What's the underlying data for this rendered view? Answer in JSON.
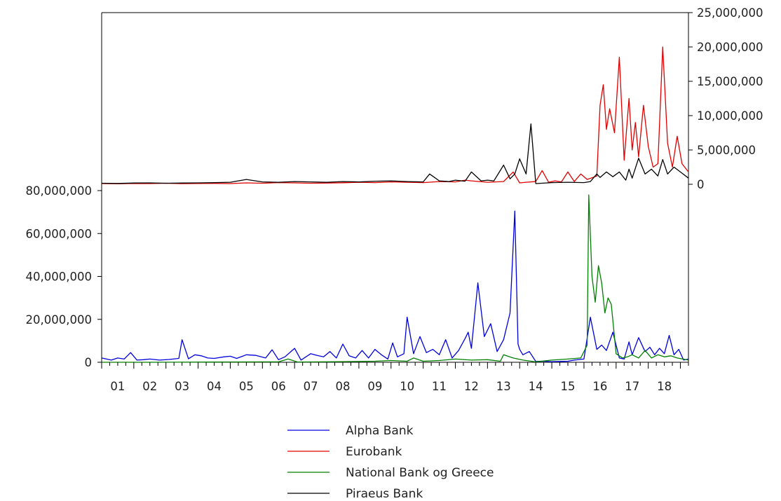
{
  "chart_data": {
    "type": "line",
    "title": "",
    "x_tick_labels": [
      "01",
      "02",
      "03",
      "04",
      "05",
      "06",
      "07",
      "08",
      "09",
      "10",
      "11",
      "12",
      "13",
      "14",
      "15",
      "16",
      "17",
      "18"
    ],
    "x_range": [
      2000.5,
      2018.75
    ],
    "upper_panel": {
      "axis": "right",
      "ylim": [
        0,
        25000000
      ],
      "y_tick_labels": [
        "0",
        "5,000,000",
        "10,000,000",
        "15,000,000",
        "20,000,000",
        "25,000,000"
      ],
      "y_tick_values": [
        0,
        5000000,
        10000000,
        15000000,
        20000000,
        25000000
      ],
      "series": [
        {
          "name": "Eurobank",
          "color": "#e00000",
          "x": [
            2000.5,
            2001.0,
            2001.5,
            2002.0,
            2002.5,
            2003.0,
            2003.5,
            2004.0,
            2004.5,
            2005.0,
            2005.5,
            2006.0,
            2006.5,
            2007.0,
            2007.5,
            2008.0,
            2008.5,
            2009.0,
            2009.5,
            2010.0,
            2010.5,
            2011.0,
            2011.5,
            2011.8,
            2012.0,
            2012.5,
            2013.0,
            2013.3,
            2013.5,
            2013.7,
            2014.0,
            2014.2,
            2014.4,
            2014.6,
            2014.8,
            2015.0,
            2015.2,
            2015.4,
            2015.6,
            2015.9,
            2016.0,
            2016.1,
            2016.2,
            2016.3,
            2016.45,
            2016.6,
            2016.75,
            2016.9,
            2017.0,
            2017.1,
            2017.2,
            2017.35,
            2017.5,
            2017.65,
            2017.8,
            2017.95,
            2018.1,
            2018.25,
            2018.4,
            2018.55,
            2018.75
          ],
          "y": [
            100000,
            80000,
            120000,
            100000,
            150000,
            90000,
            110000,
            130000,
            100000,
            200000,
            150000,
            250000,
            200000,
            150000,
            180000,
            220000,
            300000,
            250000,
            350000,
            300000,
            250000,
            400000,
            350000,
            600000,
            500000,
            300000,
            400000,
            1800000,
            200000,
            300000,
            400000,
            2000000,
            300000,
            500000,
            350000,
            1800000,
            400000,
            1500000,
            700000,
            1200000,
            11500000,
            14500000,
            8000000,
            11000000,
            7500000,
            18500000,
            3500000,
            12500000,
            5000000,
            9000000,
            4000000,
            11500000,
            5500000,
            2500000,
            3000000,
            20000000,
            6000000,
            2500000,
            7000000,
            3000000,
            1800000
          ]
        },
        {
          "name": "Piraeus Bank",
          "color": "#000000",
          "x": [
            2000.5,
            2001.0,
            2001.5,
            2002.0,
            2002.5,
            2003.0,
            2003.5,
            2004.0,
            2004.5,
            2005.0,
            2005.5,
            2006.0,
            2006.5,
            2007.0,
            2007.5,
            2008.0,
            2008.5,
            2009.0,
            2009.5,
            2010.0,
            2010.5,
            2010.7,
            2011.0,
            2011.3,
            2011.5,
            2011.8,
            2012.0,
            2012.3,
            2012.5,
            2012.7,
            2013.0,
            2013.2,
            2013.35,
            2013.5,
            2013.7,
            2013.85,
            2014.0,
            2014.5,
            2015.0,
            2015.5,
            2015.7,
            2015.9,
            2016.0,
            2016.2,
            2016.4,
            2016.6,
            2016.8,
            2016.9,
            2017.0,
            2017.2,
            2017.4,
            2017.6,
            2017.8,
            2017.95,
            2018.1,
            2018.3,
            2018.5,
            2018.75
          ],
          "y": [
            150000,
            120000,
            180000,
            200000,
            150000,
            180000,
            200000,
            250000,
            300000,
            700000,
            350000,
            300000,
            400000,
            350000,
            300000,
            400000,
            350000,
            450000,
            500000,
            400000,
            350000,
            1500000,
            500000,
            400000,
            600000,
            450000,
            1800000,
            500000,
            600000,
            500000,
            2800000,
            800000,
            1500000,
            3700000,
            1500000,
            8800000,
            100000,
            250000,
            300000,
            250000,
            400000,
            1500000,
            1000000,
            1800000,
            1100000,
            1800000,
            600000,
            2200000,
            900000,
            3800000,
            1500000,
            2200000,
            1200000,
            3600000,
            1500000,
            2500000,
            1800000,
            900000
          ]
        }
      ]
    },
    "lower_panel": {
      "axis": "left",
      "ylim": [
        0,
        80000000
      ],
      "y_tick_labels": [
        "0",
        "20,000,000",
        "40,000,000",
        "60,000,000",
        "80,000,000"
      ],
      "y_tick_values": [
        0,
        20000000,
        40000000,
        60000000,
        80000000
      ],
      "series": [
        {
          "name": "Alpha Bank",
          "color": "#0000dd",
          "x": [
            2000.5,
            2000.8,
            2001.0,
            2001.2,
            2001.4,
            2001.6,
            2001.8,
            2002.0,
            2002.3,
            2002.6,
            2002.9,
            2003.0,
            2003.2,
            2003.4,
            2003.6,
            2003.8,
            2004.0,
            2004.3,
            2004.5,
            2004.7,
            2005.0,
            2005.3,
            2005.6,
            2005.8,
            2006.0,
            2006.2,
            2006.5,
            2006.7,
            2007.0,
            2007.2,
            2007.4,
            2007.6,
            2007.8,
            2008.0,
            2008.2,
            2008.4,
            2008.6,
            2008.8,
            2009.0,
            2009.2,
            2009.4,
            2009.55,
            2009.7,
            2009.9,
            2010.0,
            2010.2,
            2010.4,
            2010.6,
            2010.8,
            2011.0,
            2011.2,
            2011.4,
            2011.6,
            2011.8,
            2011.9,
            2012.0,
            2012.2,
            2012.4,
            2012.6,
            2012.8,
            2013.0,
            2013.2,
            2013.35,
            2013.45,
            2013.5,
            2013.6,
            2013.8,
            2014.0,
            2014.2,
            2014.5,
            2014.8,
            2015.0,
            2015.2,
            2015.5,
            2015.7,
            2015.9,
            2016.05,
            2016.2,
            2016.4,
            2016.6,
            2016.75,
            2016.9,
            2017.0,
            2017.2,
            2017.4,
            2017.55,
            2017.7,
            2017.85,
            2018.0,
            2018.15,
            2018.3,
            2018.45,
            2018.6,
            2018.75
          ],
          "y": [
            2000000,
            1000000,
            2000000,
            1500000,
            4500000,
            1000000,
            1200000,
            1500000,
            1000000,
            1300000,
            1800000,
            10500000,
            1600000,
            3500000,
            3000000,
            2000000,
            1800000,
            2500000,
            2800000,
            1800000,
            3500000,
            3200000,
            2000000,
            5800000,
            1200000,
            2500000,
            6500000,
            1000000,
            4000000,
            3200000,
            2500000,
            5000000,
            2000000,
            8500000,
            3000000,
            2000000,
            5500000,
            2000000,
            6000000,
            3500000,
            1500000,
            9000000,
            2500000,
            4000000,
            21000000,
            4000000,
            12000000,
            4500000,
            6000000,
            3500000,
            10500000,
            2000000,
            5500000,
            11000000,
            14000000,
            6500000,
            37000000,
            12000000,
            18000000,
            5000000,
            10500000,
            23000000,
            70500000,
            8500000,
            6000000,
            3500000,
            5000000,
            400000,
            500000,
            300000,
            400000,
            500000,
            1000000,
            1500000,
            21000000,
            6000000,
            8000000,
            5500000,
            14000000,
            2000000,
            1500000,
            9500000,
            3500000,
            11500000,
            5000000,
            7000000,
            3500000,
            6500000,
            4000000,
            12500000,
            3500000,
            6000000,
            1000000,
            1500000
          ]
        },
        {
          "name": "National Bank og Greece",
          "color": "#008000",
          "x": [
            2000.5,
            2002.0,
            2004.0,
            2006.0,
            2006.3,
            2006.6,
            2008.0,
            2009.0,
            2009.5,
            2010.0,
            2010.2,
            2010.5,
            2011.0,
            2011.5,
            2012.0,
            2012.5,
            2012.9,
            2013.0,
            2013.3,
            2013.6,
            2014.0,
            2014.5,
            2015.0,
            2015.4,
            2015.6,
            2015.65,
            2015.75,
            2015.85,
            2015.95,
            2016.05,
            2016.15,
            2016.25,
            2016.35,
            2016.5,
            2016.7,
            2016.85,
            2017.0,
            2017.2,
            2017.4,
            2017.6,
            2017.8,
            2018.0,
            2018.2,
            2018.4,
            2018.75
          ],
          "y": [
            0,
            0,
            100000,
            200000,
            1500000,
            100000,
            300000,
            500000,
            800000,
            500000,
            2000000,
            500000,
            800000,
            1500000,
            1000000,
            1200000,
            500000,
            3500000,
            2000000,
            1000000,
            200000,
            1000000,
            1500000,
            2000000,
            8000000,
            78000000,
            40000000,
            28000000,
            45000000,
            37000000,
            23000000,
            30000000,
            27000000,
            4000000,
            2000000,
            2500000,
            3500000,
            2000000,
            5500000,
            2000000,
            3500000,
            2500000,
            3000000,
            2000000,
            1000000
          ]
        }
      ]
    },
    "legend": {
      "placement": "bottom",
      "entries": [
        {
          "label": "Alpha Bank",
          "color": "#0000dd"
        },
        {
          "label": "Eurobank",
          "color": "#e00000"
        },
        {
          "label": "National Bank og Greece",
          "color": "#008000"
        },
        {
          "label": "Piraeus Bank",
          "color": "#000000"
        }
      ]
    }
  }
}
